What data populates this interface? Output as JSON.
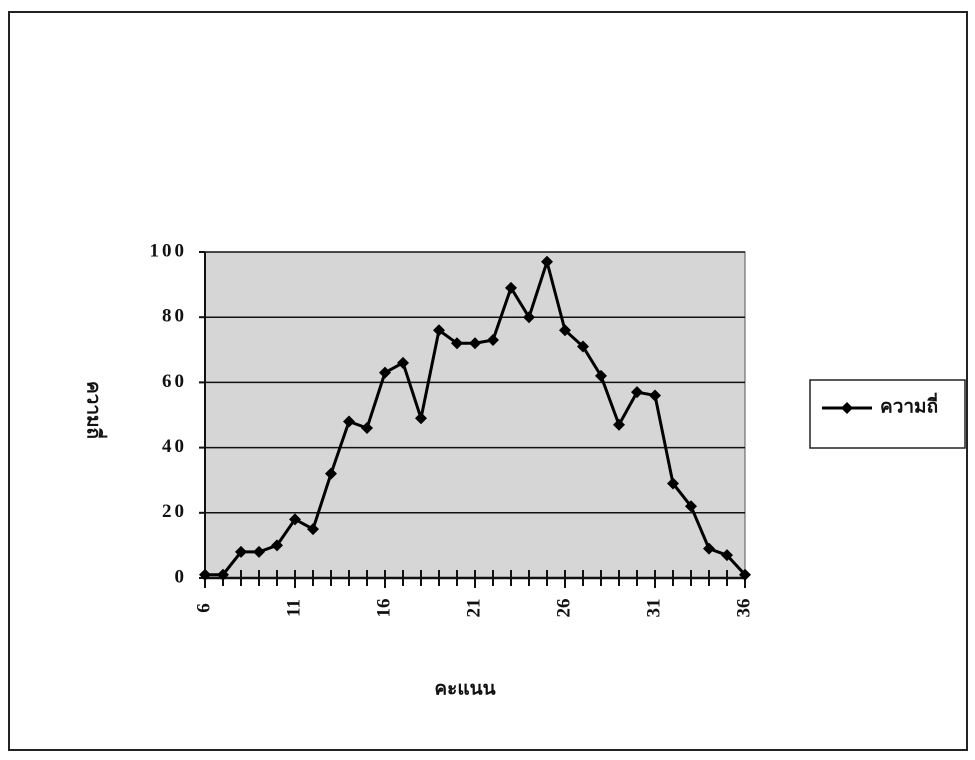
{
  "chart_data": {
    "type": "line",
    "xlabel": "คะแนน",
    "ylabel": "ความถี่",
    "x": [
      6,
      7,
      8,
      9,
      10,
      11,
      12,
      13,
      14,
      15,
      16,
      17,
      18,
      19,
      20,
      21,
      22,
      23,
      24,
      25,
      26,
      27,
      28,
      29,
      30,
      31,
      32,
      33,
      34,
      35,
      36
    ],
    "series": [
      {
        "name": "ความถี่",
        "color": "#000000",
        "values": [
          1,
          1,
          8,
          8,
          10,
          18,
          15,
          32,
          48,
          46,
          63,
          66,
          49,
          76,
          72,
          72,
          73,
          89,
          80,
          97,
          76,
          71,
          62,
          47,
          57,
          56,
          29,
          22,
          9,
          7,
          1
        ]
      }
    ],
    "xlim": [
      6,
      36
    ],
    "xticks": [
      6,
      11,
      16,
      21,
      26,
      31,
      36
    ],
    "ylim": [
      0,
      100
    ],
    "yticks": [
      0,
      20,
      40,
      60,
      80,
      100
    ],
    "grid": true,
    "legend": "right"
  }
}
